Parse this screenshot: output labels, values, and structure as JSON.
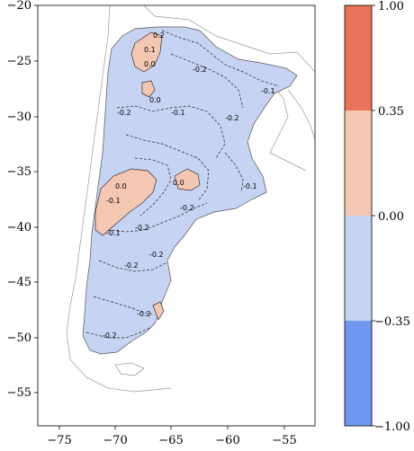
{
  "map": {
    "x_ticks": [
      "−75",
      "−70",
      "−65",
      "−60",
      "−55"
    ],
    "y_ticks": [
      "−20",
      "−25",
      "−30",
      "−35",
      "−40",
      "−45",
      "−50",
      "−55"
    ],
    "contour_labels": [
      "0.2",
      "0.1",
      "0.0",
      "-0.2",
      "0.0",
      "-0.1",
      "-0.2",
      "-0.1",
      "0.0",
      "-0.2",
      "-0.1",
      "-0.1",
      "-0.2",
      "-0.2",
      "-0.2",
      "-0.2",
      "-0.2",
      "-0.2",
      "-0.1",
      "0.0"
    ]
  },
  "colorbar": {
    "tick_labels": [
      "1.00",
      "0.35",
      "0.00",
      "−0.35",
      "−1.00"
    ],
    "colors": [
      "#e8735a",
      "#f4c7b2",
      "#c6d3f2",
      "#7297f0"
    ]
  },
  "colors": {
    "land": "#c6d3f2",
    "positive": "#f4c7b2",
    "border": "#888888"
  }
}
